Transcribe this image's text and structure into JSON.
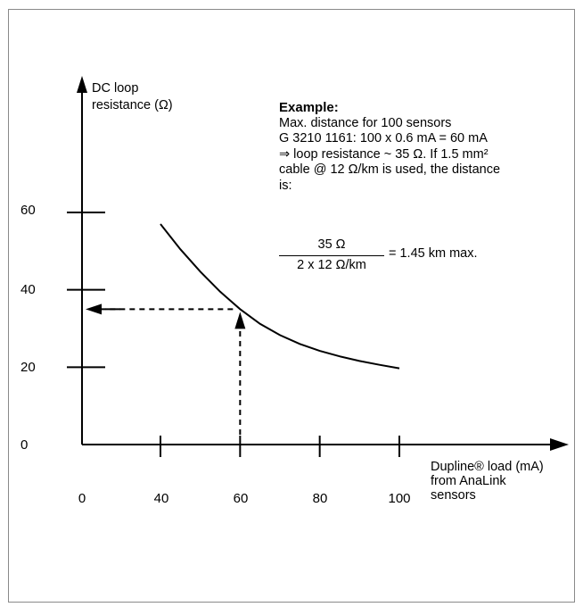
{
  "chart_data": {
    "type": "line",
    "ylabel_line1": "DC loop",
    "ylabel_line2": "resistance (Ω)",
    "xlabel_line1": "Dupline® load (mA)",
    "xlabel_line2": "from AnaLink",
    "xlabel_line3": "sensors",
    "y_ticks": [
      "0",
      "20",
      "40",
      "60"
    ],
    "x_ticks": [
      "0",
      "40",
      "60",
      "80",
      "100"
    ],
    "series": [
      {
        "x": [
          40,
          45,
          50,
          55,
          60,
          65,
          70,
          75,
          80,
          85,
          90,
          95,
          100
        ],
        "y": [
          57,
          50.5,
          44.7,
          39.5,
          35,
          31.2,
          28.3,
          26,
          24.2,
          22.8,
          21.6,
          20.6,
          19.7
        ]
      }
    ],
    "annotation": {
      "x": 60,
      "y": 35
    }
  },
  "example": {
    "title": "Example:",
    "line1": "Max. distance for 100 sensors",
    "line2": "G 3210 1161: 100 x 0.6 mA = 60 mA",
    "line3": "⇒ loop resistance ~ 35 Ω. If 1.5 mm²",
    "line4": "cable @ 12 Ω/km is used, the distance",
    "line5": "is:"
  },
  "formula": {
    "numerator": "35 Ω",
    "denominator": "2 x 12 Ω/km",
    "result": "= 1.45 km max."
  }
}
